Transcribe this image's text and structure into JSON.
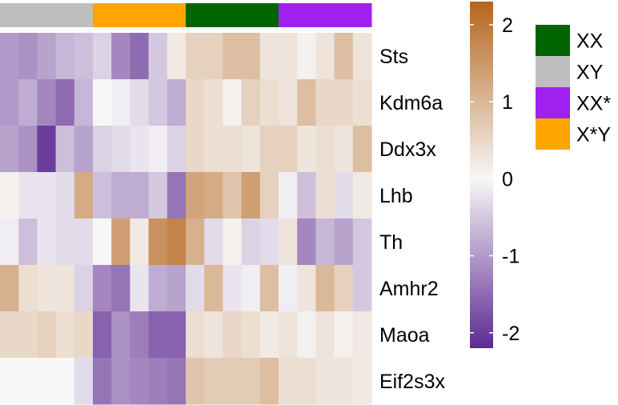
{
  "chart_data": {
    "type": "heatmap",
    "title": "",
    "rows": [
      "Sts",
      "Kdm6a",
      "Ddx3x",
      "Lhb",
      "Th",
      "Amhr2",
      "Maoa",
      "Eif2s3x"
    ],
    "column_groups": [
      "XY",
      "XY",
      "XY",
      "XY",
      "XY",
      "X*Y",
      "X*Y",
      "X*Y",
      "X*Y",
      "X*Y",
      "XX",
      "XX",
      "XX",
      "XX",
      "XX",
      "XX*",
      "XX*",
      "XX*",
      "XX*",
      "XX*"
    ],
    "values": [
      [
        -1.0,
        -1.1,
        -0.9,
        -0.7,
        -0.6,
        -0.4,
        -1.2,
        -1.5,
        -0.5,
        0.2,
        0.6,
        0.6,
        0.9,
        0.9,
        0.3,
        0.3,
        0.1,
        0.3,
        0.9,
        0.3
      ],
      [
        -1.0,
        -0.8,
        -1.2,
        -1.5,
        -0.7,
        0.0,
        -0.1,
        -0.3,
        -0.5,
        -0.8,
        0.5,
        0.4,
        0.1,
        0.6,
        0.4,
        0.3,
        0.9,
        0.5,
        0.5,
        0.4
      ],
      [
        -0.9,
        -1.1,
        -2.0,
        -0.6,
        -0.9,
        -0.4,
        -0.3,
        -0.2,
        -0.1,
        -0.4,
        0.5,
        0.4,
        0.4,
        0.3,
        0.6,
        0.6,
        0.3,
        0.4,
        0.3,
        0.9
      ],
      [
        0.1,
        -0.2,
        -0.2,
        -0.3,
        1.2,
        -0.6,
        -0.8,
        -0.8,
        -0.5,
        -1.4,
        1.3,
        1.2,
        0.8,
        1.4,
        0.6,
        -0.1,
        -0.6,
        0.4,
        -0.3,
        0.2
      ],
      [
        -0.1,
        -0.6,
        -0.2,
        -0.3,
        -0.3,
        0.0,
        1.4,
        0.2,
        1.6,
        1.8,
        1.1,
        -0.3,
        0.1,
        -0.4,
        -0.3,
        0.3,
        -1.2,
        -0.7,
        -0.9,
        -0.5
      ],
      [
        1.1,
        0.4,
        0.3,
        0.3,
        -0.4,
        -1.2,
        -1.4,
        -0.2,
        -0.8,
        -0.9,
        -0.3,
        1.0,
        -0.2,
        -0.1,
        0.9,
        -0.1,
        0.3,
        1.0,
        0.6,
        -0.5
      ],
      [
        0.5,
        0.5,
        0.6,
        0.4,
        0.5,
        -1.6,
        -1.1,
        -1.3,
        -1.6,
        -1.6,
        0.4,
        0.3,
        0.5,
        0.4,
        0.2,
        0.3,
        0.1,
        0.3,
        0.1,
        0.2
      ],
      [
        0.0,
        0.0,
        0.0,
        0.0,
        -0.3,
        -1.4,
        -1.1,
        -1.2,
        -1.3,
        -1.4,
        0.8,
        0.7,
        0.7,
        0.7,
        0.9,
        0.4,
        0.4,
        0.3,
        0.3,
        0.2
      ]
    ],
    "colorbar": {
      "ticks": [
        2,
        1,
        0,
        -1,
        -2
      ],
      "tick_labels": [
        "2",
        "1",
        "0",
        "-1",
        "-2"
      ],
      "range": [
        -2.2,
        2.3
      ]
    },
    "legend": [
      {
        "label": "XX",
        "color": "#006400"
      },
      {
        "label": "XY",
        "color": "#BEBEBE"
      },
      {
        "label": "XX*",
        "color": "#A020F0"
      },
      {
        "label": "X*Y",
        "color": "#FFA500"
      }
    ],
    "colors": {
      "low": "#5E2A91",
      "mid": "#F7F7F7",
      "high": "#B5651D"
    }
  }
}
